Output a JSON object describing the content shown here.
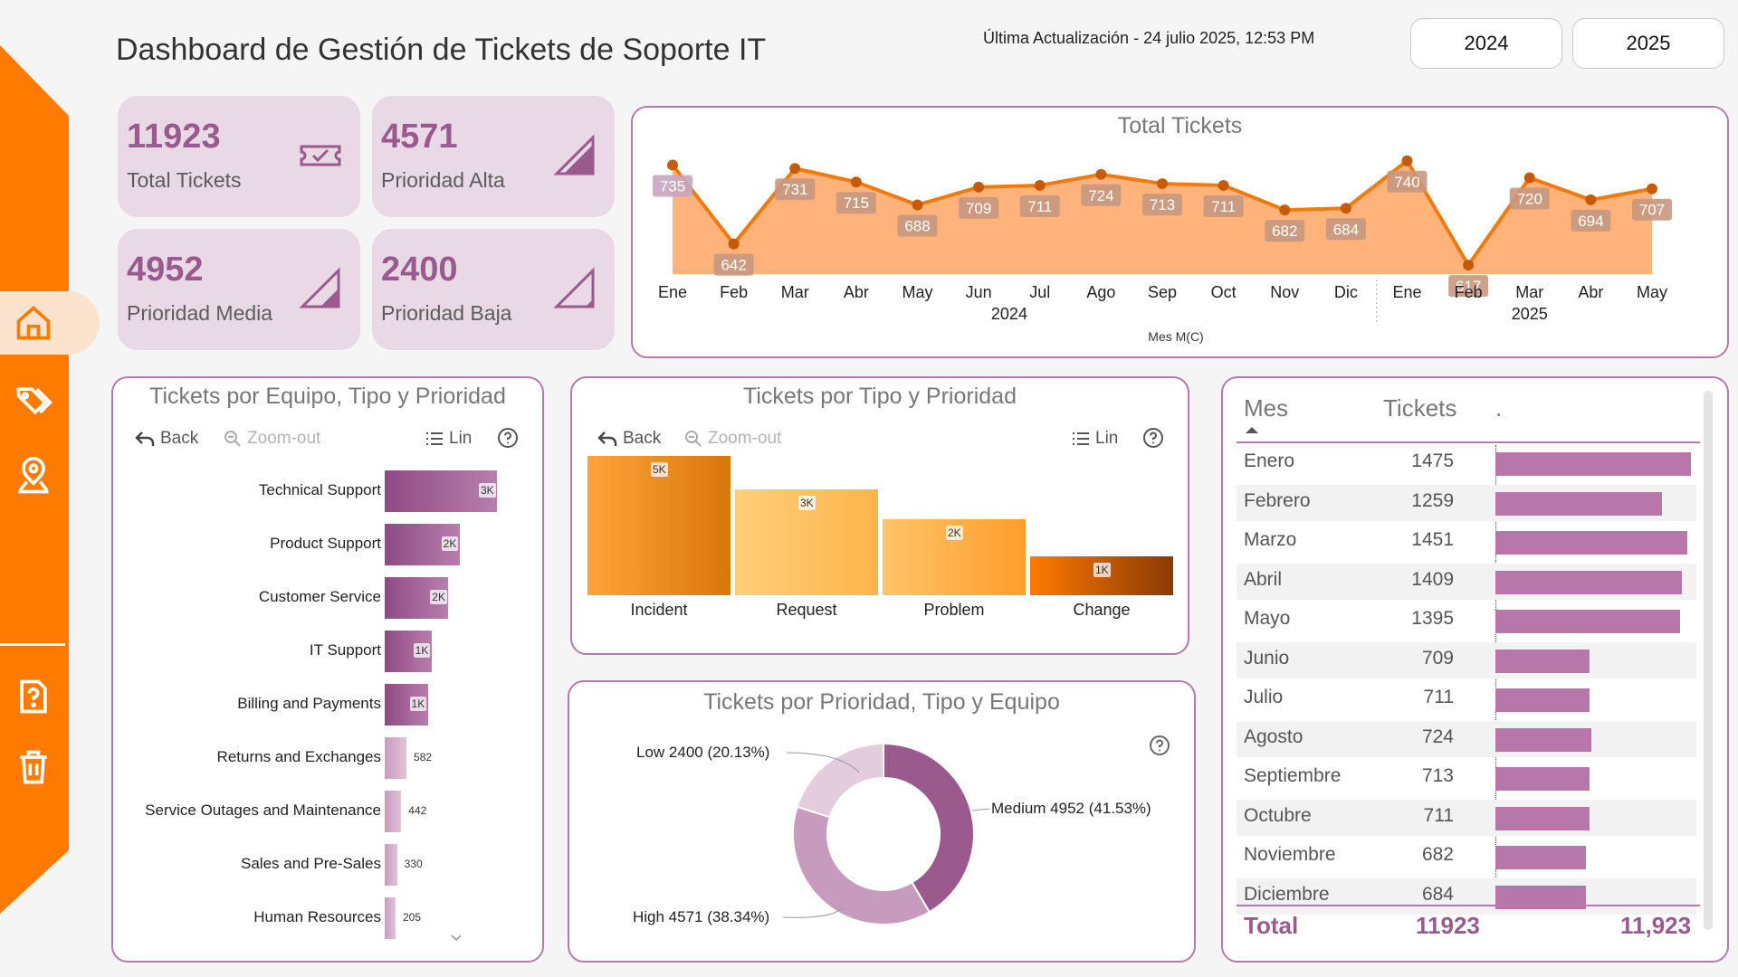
{
  "header": {
    "title": "Dashboard de Gestión de Tickets de Soporte IT",
    "last_update": "Última Actualización - 24 julio 2025, 12:53 PM",
    "years": [
      "2024",
      "2025"
    ]
  },
  "sidebar": {
    "items": [
      "home-icon",
      "tags-icon",
      "map-pin-icon",
      "help-icon",
      "trash-icon"
    ]
  },
  "kpis": [
    {
      "value": "11923",
      "label": "Total Tickets",
      "icon": "ticket-icon"
    },
    {
      "value": "4571",
      "label": "Prioridad Alta",
      "icon": "signal-high-icon"
    },
    {
      "value": "4952",
      "label": "Prioridad Media",
      "icon": "signal-medium-icon"
    },
    {
      "value": "2400",
      "label": "Prioridad Baja",
      "icon": "signal-low-icon"
    }
  ],
  "toolbar": {
    "back": "Back",
    "zoom_out": "Zoom-out",
    "lin": "Lin",
    "help": "?"
  },
  "chart_data": [
    {
      "type": "area",
      "title": "Total Tickets",
      "xlabel": "Mes M(C)",
      "categories": [
        "Ene",
        "Feb",
        "Mar",
        "Abr",
        "May",
        "Jun",
        "Jul",
        "Ago",
        "Sep",
        "Oct",
        "Nov",
        "Dic",
        "Ene",
        "Feb",
        "Mar",
        "Abr",
        "May"
      ],
      "values": [
        735,
        642,
        731,
        715,
        688,
        709,
        711,
        724,
        713,
        711,
        682,
        684,
        740,
        617,
        720,
        694,
        707
      ],
      "year_groups": [
        {
          "label": "2024",
          "start": 0,
          "end": 11
        },
        {
          "label": "2025",
          "start": 12,
          "end": 16
        }
      ],
      "ylim": [
        0,
        760
      ],
      "colors": {
        "line": "#f07a0e",
        "fill": "#ffb27a",
        "point": "#c85a06"
      }
    },
    {
      "type": "bar",
      "orientation": "horizontal",
      "title": "Tickets por Equipo, Tipo y Prioridad",
      "categories": [
        "Technical Support",
        "Product Support",
        "Customer Service",
        "IT Support",
        "Billing and Payments",
        "Returns and Exchanges",
        "Service Outages and Maintenance",
        "Sales and Pre-Sales",
        "Human Resources"
      ],
      "values": [
        3000,
        2000,
        1700,
        1250,
        1150,
        582,
        442,
        330,
        205
      ],
      "value_labels": [
        "3K",
        "2K",
        "2K",
        "1K",
        "1K",
        "582",
        "442",
        "330",
        "205"
      ],
      "xlim": [
        0,
        3000
      ]
    },
    {
      "type": "bar",
      "title": "Tickets por Tipo y Prioridad",
      "categories": [
        "Incident",
        "Request",
        "Problem",
        "Change"
      ],
      "values": [
        4600,
        3500,
        2500,
        1280
      ],
      "value_labels": [
        "5K",
        "3K",
        "2K",
        "1K"
      ],
      "ylim": [
        0,
        4600
      ]
    },
    {
      "type": "pie",
      "title": "Tickets por Prioridad, Tipo y Equipo",
      "labels": [
        "Medium",
        "High",
        "Low"
      ],
      "values": [
        4952,
        4571,
        2400
      ],
      "percents": [
        41.53,
        38.34,
        20.13
      ],
      "label_texts": [
        "Medium 4952 (41.53%)",
        "High 4571 (38.34%)",
        "Low 2400 (20.13%)"
      ],
      "colors": [
        "#9a5a8e",
        "#c79bbe",
        "#e3cddd"
      ]
    },
    {
      "type": "table",
      "columns": [
        "Mes",
        "Tickets",
        "."
      ],
      "rows": [
        {
          "month": "Enero",
          "tickets": 1475
        },
        {
          "month": "Febrero",
          "tickets": 1259
        },
        {
          "month": "Marzo",
          "tickets": 1451
        },
        {
          "month": "Abril",
          "tickets": 1409
        },
        {
          "month": "Mayo",
          "tickets": 1395
        },
        {
          "month": "Junio",
          "tickets": 709
        },
        {
          "month": "Julio",
          "tickets": 711
        },
        {
          "month": "Agosto",
          "tickets": 724
        },
        {
          "month": "Septiembre",
          "tickets": 713
        },
        {
          "month": "Octubre",
          "tickets": 711
        },
        {
          "month": "Noviembre",
          "tickets": 682
        },
        {
          "month": "Diciembre",
          "tickets": 684
        }
      ],
      "total_label": "Total",
      "total_value": "11923",
      "total_bar_value": "11,923",
      "bar_max": 1475
    }
  ]
}
